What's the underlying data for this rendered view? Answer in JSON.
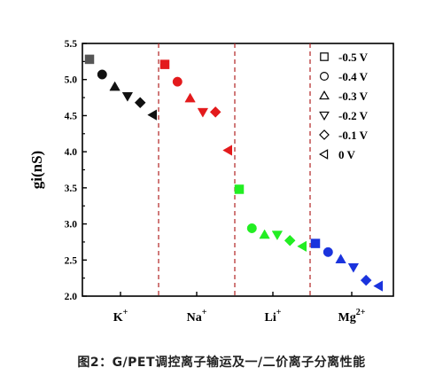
{
  "chart_data": {
    "type": "scatter",
    "ylabel": "gi(nS)",
    "ylim": [
      2.0,
      5.5
    ],
    "yticks": [
      "2.0",
      "2.5",
      "3.0",
      "3.5",
      "4.0",
      "4.5",
      "5.0",
      "5.5"
    ],
    "ion_labels": [
      {
        "base": "K",
        "sup": "+"
      },
      {
        "base": "Na",
        "sup": "+"
      },
      {
        "base": "Li",
        "sup": "+"
      },
      {
        "base": "Mg",
        "sup": "2+"
      }
    ],
    "legend": [
      "-0.5 V",
      "-0.4 V",
      "-0.3 V",
      "-0.2 V",
      "-0.1 V",
      "0 V"
    ],
    "markers": [
      "square",
      "circle",
      "triangle-up",
      "triangle-down",
      "diamond",
      "triangle-left"
    ],
    "groups": [
      {
        "ion": "K+",
        "color": "#111111",
        "values": [
          5.28,
          5.07,
          4.9,
          4.77,
          4.68,
          4.51
        ],
        "first_color": "#555555"
      },
      {
        "ion": "Na+",
        "color": "#e31a1c",
        "values": [
          5.21,
          4.97,
          4.74,
          4.55,
          4.55,
          4.02
        ]
      },
      {
        "ion": "Li+",
        "color": "#22ee22",
        "values": [
          3.48,
          2.94,
          2.85,
          2.85,
          2.77,
          2.69
        ]
      },
      {
        "ion": "Mg2+",
        "color": "#1a33dd",
        "values": [
          2.73,
          2.61,
          2.51,
          2.4,
          2.22,
          2.14
        ]
      }
    ],
    "separators": true
  },
  "caption": "图2：G/PET调控离子输运及一/二价离子分离性能"
}
